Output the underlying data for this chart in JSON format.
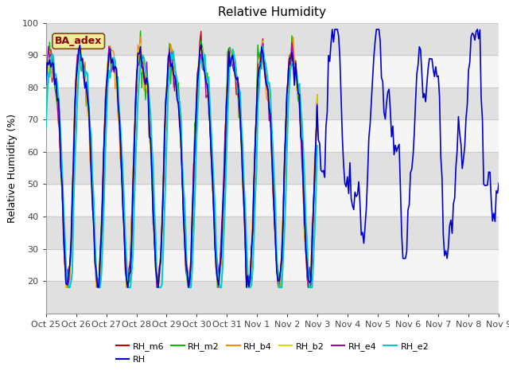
{
  "title": "Relative Humidity",
  "ylabel": "Relative Humidity (%)",
  "ylim": [
    10,
    100
  ],
  "yticks": [
    20,
    30,
    40,
    50,
    60,
    70,
    80,
    90,
    100
  ],
  "fig_bg": "#ffffff",
  "plot_bg": "#f5f5f5",
  "band_color": "#e0e0e0",
  "grid_color": "#cccccc",
  "series": {
    "RH_m6": {
      "color": "#cc0000",
      "lw": 1.0
    },
    "RH": {
      "color": "#0000cc",
      "lw": 1.2
    },
    "RH_m2": {
      "color": "#00bb00",
      "lw": 1.0
    },
    "RH_b4": {
      "color": "#ff8800",
      "lw": 1.0
    },
    "RH_b2": {
      "color": "#dddd00",
      "lw": 1.0
    },
    "RH_e4": {
      "color": "#aa00aa",
      "lw": 1.0
    },
    "RH_e2": {
      "color": "#00cccc",
      "lw": 1.5
    }
  },
  "x_tick_labels": [
    "Oct 25",
    "Oct 26",
    "Oct 27",
    "Oct 28",
    "Oct 29",
    "Oct 30",
    "Oct 31",
    "Nov 1",
    "Nov 2",
    "Nov 3",
    "Nov 4",
    "Nov 5",
    "Nov 6",
    "Nov 7",
    "Nov 8",
    "Nov 9"
  ],
  "annotation_text": "BA_adex",
  "annotation_color": "#8b0000",
  "annotation_bg": "#eeee99",
  "annotation_border": "#8b4513"
}
